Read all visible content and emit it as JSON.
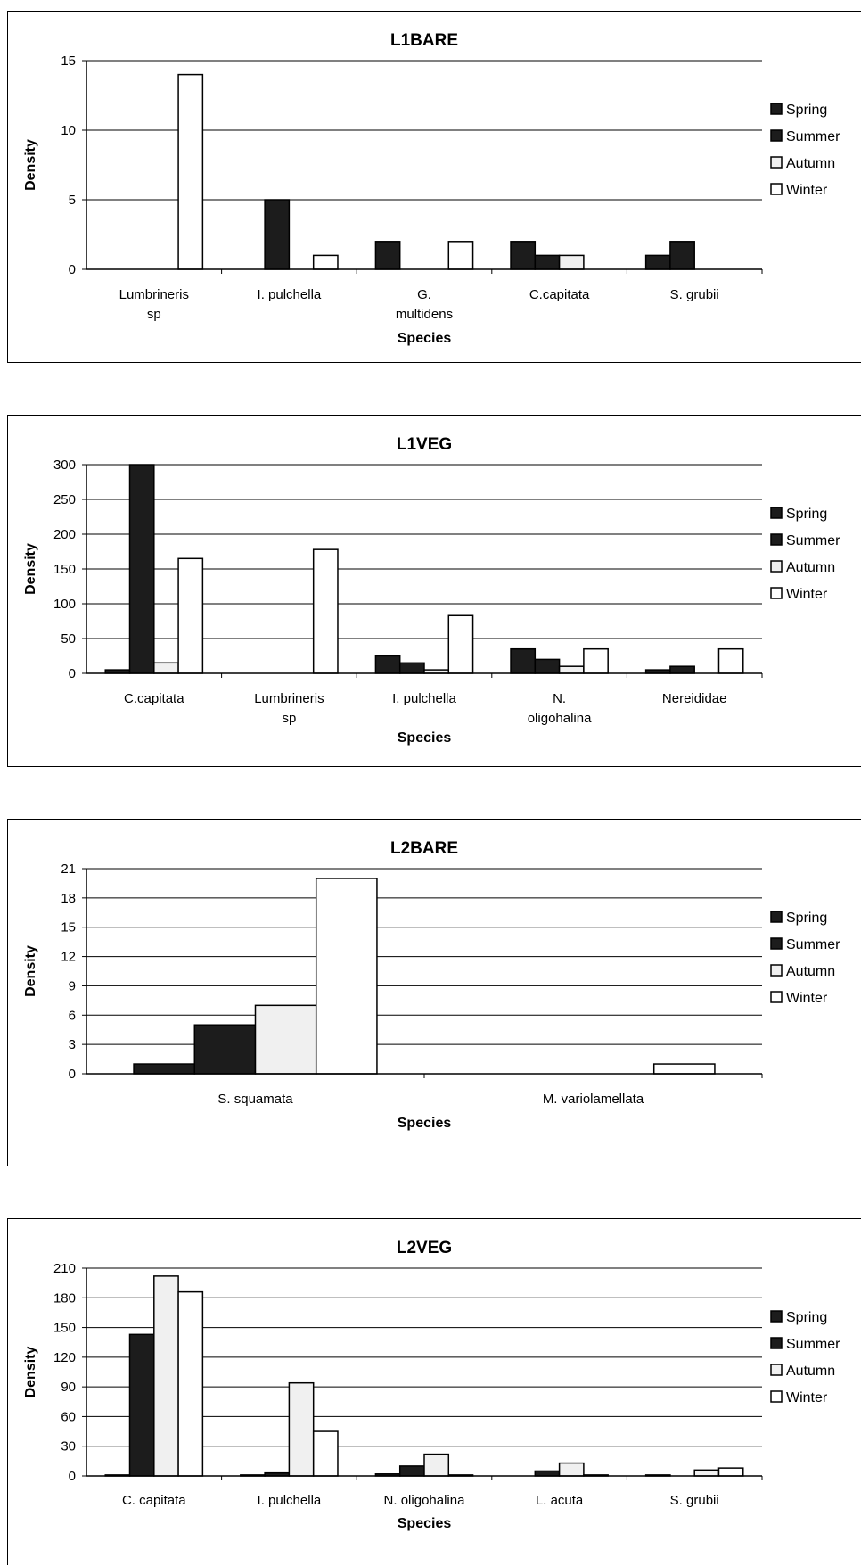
{
  "colors": {
    "Spring": "#1c1c1c",
    "Summer": "#1c1c1c",
    "Autumn": "#f0f0f0",
    "Winter": "#ffffff",
    "grid": "#000000"
  },
  "chart_data": [
    {
      "type": "bar",
      "title": "L1BARE",
      "xlabel": "Species",
      "ylabel": "Density",
      "ylim": [
        0,
        15
      ],
      "yticks": [
        0,
        5,
        10,
        15
      ],
      "grid": true,
      "legend_position": "right",
      "categories": [
        [
          "Lumbrineris",
          "sp"
        ],
        [
          "I. pulchella"
        ],
        [
          "G.",
          "multidens"
        ],
        [
          "C.capitata"
        ],
        [
          "S. grubii"
        ]
      ],
      "series": [
        {
          "name": "Spring",
          "values": [
            0,
            0,
            2,
            2,
            1
          ]
        },
        {
          "name": "Summer",
          "values": [
            0,
            5,
            0,
            1,
            2
          ]
        },
        {
          "name": "Autumn",
          "values": [
            0,
            0,
            0,
            1,
            0
          ]
        },
        {
          "name": "Winter",
          "values": [
            14,
            1,
            2,
            0,
            0
          ]
        }
      ]
    },
    {
      "type": "bar",
      "title": "L1VEG",
      "xlabel": "Species",
      "ylabel": "Density",
      "ylim": [
        0,
        300
      ],
      "yticks": [
        0,
        50,
        100,
        150,
        200,
        250,
        300
      ],
      "grid": true,
      "legend_position": "right",
      "categories": [
        [
          "C.capitata"
        ],
        [
          "Lumbrineris",
          "sp"
        ],
        [
          "I. pulchella"
        ],
        [
          "N.",
          "oligohalina"
        ],
        [
          "Nereididae"
        ]
      ],
      "series": [
        {
          "name": "Spring",
          "values": [
            5,
            0,
            25,
            35,
            5
          ]
        },
        {
          "name": "Summer",
          "values": [
            300,
            0,
            15,
            20,
            10
          ]
        },
        {
          "name": "Autumn",
          "values": [
            15,
            0,
            5,
            10,
            0
          ]
        },
        {
          "name": "Winter",
          "values": [
            165,
            178,
            83,
            35,
            35
          ]
        }
      ]
    },
    {
      "type": "bar",
      "title": "L2BARE",
      "xlabel": "Species",
      "ylabel": "Density",
      "ylim": [
        0,
        21
      ],
      "yticks": [
        0,
        3,
        6,
        9,
        12,
        15,
        18,
        21
      ],
      "grid": true,
      "legend_position": "right",
      "categories": [
        [
          "S. squamata"
        ],
        [
          "M. variolamellata"
        ]
      ],
      "series": [
        {
          "name": "Spring",
          "values": [
            1,
            0
          ]
        },
        {
          "name": "Summer",
          "values": [
            5,
            0
          ]
        },
        {
          "name": "Autumn",
          "values": [
            7,
            0
          ]
        },
        {
          "name": "Winter",
          "values": [
            20,
            1
          ]
        }
      ]
    },
    {
      "type": "bar",
      "title": "L2VEG",
      "xlabel": "Species",
      "ylabel": "Density",
      "ylim": [
        0,
        210
      ],
      "yticks": [
        0,
        30,
        60,
        90,
        120,
        150,
        180,
        210
      ],
      "grid": true,
      "legend_position": "right",
      "categories": [
        [
          "C. capitata"
        ],
        [
          "I. pulchella"
        ],
        [
          "N. oligohalina"
        ],
        [
          "L. acuta"
        ],
        [
          "S. grubii"
        ]
      ],
      "series": [
        {
          "name": "Spring",
          "values": [
            1,
            1,
            2,
            0,
            1
          ]
        },
        {
          "name": "Summer",
          "values": [
            143,
            3,
            10,
            5,
            0
          ]
        },
        {
          "name": "Autumn",
          "values": [
            202,
            94,
            22,
            13,
            6
          ]
        },
        {
          "name": "Winter",
          "values": [
            186,
            45,
            1,
            1,
            8
          ]
        }
      ]
    }
  ]
}
